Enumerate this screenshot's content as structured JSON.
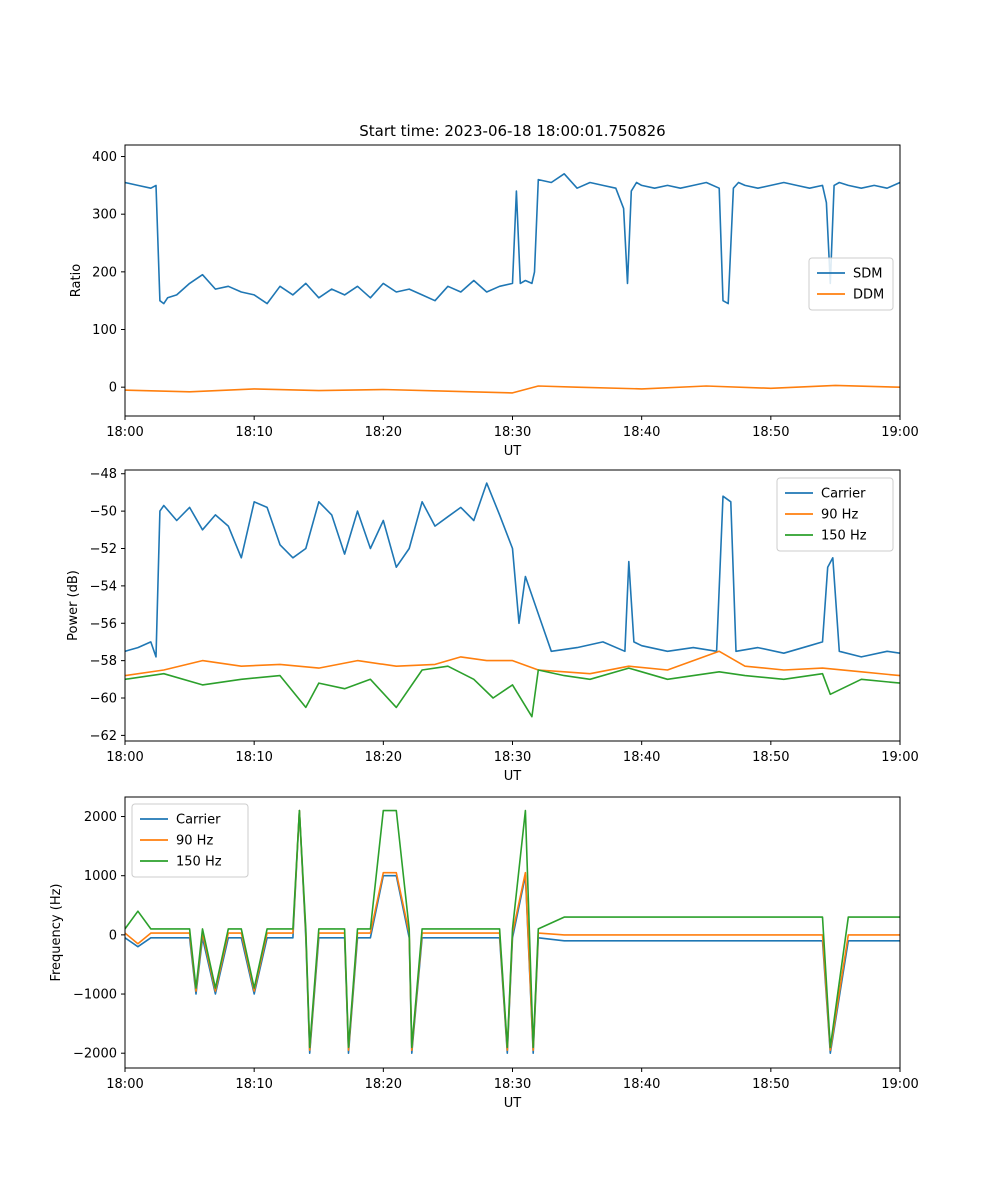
{
  "chart_data": [
    {
      "type": "line",
      "title": "Start time: 2023-06-18 18:00:01.750826",
      "xlabel": "UT",
      "ylabel": "Ratio",
      "x_ticks": [
        "18:00",
        "18:10",
        "18:20",
        "18:30",
        "18:40",
        "18:50",
        "19:00"
      ],
      "x_range_minutes": [
        0,
        60
      ],
      "ylim": [
        -50,
        420
      ],
      "y_ticks": [
        0,
        100,
        200,
        300,
        400
      ],
      "legend": {
        "position": "center-right"
      },
      "grid": false,
      "series": [
        {
          "name": "SDM",
          "color": "#1f77b4",
          "x": [
            0,
            1,
            2,
            2.4,
            2.7,
            3,
            3.3,
            4,
            5,
            6,
            7,
            8,
            9,
            10,
            11,
            12,
            13,
            14,
            15,
            16,
            17,
            18,
            19,
            20,
            21,
            22,
            23,
            24,
            25,
            26,
            27,
            28,
            29,
            30,
            30.3,
            30.6,
            31,
            31.5,
            31.7,
            32,
            33,
            34,
            35,
            36,
            37,
            38,
            38.6,
            38.9,
            39.2,
            39.6,
            40,
            41,
            42,
            43,
            44,
            45,
            46,
            46.3,
            46.7,
            47.1,
            47.5,
            48,
            49,
            50,
            51,
            52,
            53,
            54,
            54.3,
            54.6,
            54.9,
            55.3,
            56,
            57,
            58,
            59,
            60
          ],
          "y": [
            355,
            350,
            345,
            350,
            150,
            145,
            155,
            160,
            180,
            195,
            170,
            175,
            165,
            160,
            145,
            175,
            160,
            180,
            155,
            170,
            160,
            175,
            155,
            180,
            165,
            170,
            160,
            150,
            175,
            165,
            185,
            165,
            175,
            180,
            340,
            180,
            185,
            180,
            200,
            360,
            355,
            370,
            345,
            355,
            350,
            345,
            310,
            180,
            340,
            355,
            350,
            345,
            350,
            345,
            350,
            355,
            345,
            150,
            145,
            345,
            355,
            350,
            345,
            350,
            355,
            350,
            345,
            350,
            320,
            180,
            350,
            355,
            350,
            345,
            350,
            345,
            355
          ]
        },
        {
          "name": "DDM",
          "color": "#ff7f0e",
          "x": [
            0,
            5,
            10,
            15,
            20,
            25,
            30,
            32,
            35,
            40,
            45,
            50,
            55,
            60
          ],
          "y": [
            -5,
            -8,
            -3,
            -6,
            -4,
            -7,
            -10,
            2,
            0,
            -3,
            2,
            -2,
            3,
            0
          ]
        }
      ]
    },
    {
      "type": "line",
      "title": "",
      "xlabel": "UT",
      "ylabel": "Power (dB)",
      "x_ticks": [
        "18:00",
        "18:10",
        "18:20",
        "18:30",
        "18:40",
        "18:50",
        "19:00"
      ],
      "x_range_minutes": [
        0,
        60
      ],
      "ylim": [
        -62.3,
        -47.8
      ],
      "y_ticks": [
        -62,
        -60,
        -58,
        -56,
        -54,
        -52,
        -50,
        -48
      ],
      "legend": {
        "position": "top-right"
      },
      "grid": false,
      "series": [
        {
          "name": "Carrier",
          "color": "#1f77b4",
          "x": [
            0,
            1,
            2,
            2.4,
            2.7,
            3,
            4,
            5,
            6,
            7,
            8,
            9,
            10,
            11,
            12,
            13,
            14,
            15,
            16,
            17,
            18,
            19,
            20,
            21,
            22,
            23,
            24,
            25,
            26,
            27,
            28,
            29,
            30,
            30.5,
            31,
            32,
            33,
            35,
            37,
            38.7,
            39,
            39.4,
            40,
            42,
            44,
            45.8,
            46.3,
            46.9,
            47.3,
            49,
            51,
            53,
            54,
            54.4,
            54.8,
            55.3,
            57,
            59,
            60
          ],
          "y": [
            -57.5,
            -57.3,
            -57.0,
            -57.8,
            -50.0,
            -49.7,
            -50.5,
            -49.8,
            -51.0,
            -50.2,
            -50.8,
            -52.5,
            -49.5,
            -49.8,
            -51.8,
            -52.5,
            -52.0,
            -49.5,
            -50.2,
            -52.3,
            -50.0,
            -52.0,
            -50.5,
            -53.0,
            -52.0,
            -49.5,
            -50.8,
            -50.3,
            -49.8,
            -50.5,
            -48.5,
            -50.2,
            -52.0,
            -56.0,
            -53.5,
            -55.5,
            -57.5,
            -57.3,
            -57.0,
            -57.5,
            -52.7,
            -57.0,
            -57.2,
            -57.5,
            -57.3,
            -57.5,
            -49.2,
            -49.5,
            -57.5,
            -57.3,
            -57.6,
            -57.2,
            -57.0,
            -53.0,
            -52.5,
            -57.5,
            -57.8,
            -57.5,
            -57.6
          ]
        },
        {
          "name": "90 Hz",
          "color": "#ff7f0e",
          "x": [
            0,
            3,
            6,
            9,
            12,
            15,
            18,
            21,
            24,
            26,
            28,
            30,
            32,
            34,
            36,
            39,
            42,
            46,
            48,
            51,
            54,
            57,
            60
          ],
          "y": [
            -58.8,
            -58.5,
            -58.0,
            -58.3,
            -58.2,
            -58.4,
            -58.0,
            -58.3,
            -58.2,
            -57.8,
            -58.0,
            -58.0,
            -58.5,
            -58.6,
            -58.7,
            -58.3,
            -58.5,
            -57.5,
            -58.3,
            -58.5,
            -58.4,
            -58.6,
            -58.8
          ]
        },
        {
          "name": "150 Hz",
          "color": "#2ca02c",
          "x": [
            0,
            3,
            6,
            9,
            12,
            14,
            15,
            17,
            19,
            21,
            23,
            25,
            27,
            28.5,
            30,
            31.5,
            32,
            34,
            36,
            39,
            42,
            46,
            48,
            51,
            54,
            54.6,
            57,
            60
          ],
          "y": [
            -59.0,
            -58.7,
            -59.3,
            -59.0,
            -58.8,
            -60.5,
            -59.2,
            -59.5,
            -59.0,
            -60.5,
            -58.5,
            -58.3,
            -59.0,
            -60.0,
            -59.3,
            -61.0,
            -58.5,
            -58.8,
            -59.0,
            -58.4,
            -59.0,
            -58.6,
            -58.8,
            -59.0,
            -58.7,
            -59.8,
            -59.0,
            -59.2
          ]
        }
      ]
    },
    {
      "type": "line",
      "title": "",
      "xlabel": "UT",
      "ylabel": "Frequency (Hz)",
      "x_ticks": [
        "18:00",
        "18:10",
        "18:20",
        "18:30",
        "18:40",
        "18:50",
        "19:00"
      ],
      "x_range_minutes": [
        0,
        60
      ],
      "ylim": [
        -2250,
        2330
      ],
      "y_ticks": [
        -2000,
        -1000,
        0,
        1000,
        2000
      ],
      "legend": {
        "position": "top-left"
      },
      "grid": false,
      "series": [
        {
          "name": "Carrier",
          "color": "#1f77b4",
          "x": [
            0,
            1,
            2,
            3,
            4,
            5,
            5.5,
            6,
            7,
            8,
            9,
            10,
            11,
            12,
            13,
            13.5,
            14,
            14.3,
            15,
            16,
            17,
            17.3,
            18,
            19,
            20,
            21,
            22,
            22.2,
            23,
            24,
            25,
            26,
            27,
            28,
            29,
            29.6,
            30,
            31,
            31.6,
            32,
            34,
            36,
            38,
            40,
            42,
            44,
            46,
            48,
            50,
            52,
            54,
            54.6,
            56,
            58,
            60
          ],
          "y": [
            -50,
            -200,
            -50,
            -50,
            -50,
            -50,
            -1000,
            -50,
            -1000,
            -50,
            -50,
            -1000,
            -50,
            -50,
            -50,
            2100,
            -50,
            -2000,
            -50,
            -50,
            -50,
            -2000,
            -50,
            -50,
            1000,
            1000,
            -50,
            -2000,
            -50,
            -50,
            -50,
            -50,
            -50,
            -50,
            -50,
            -2000,
            -50,
            1000,
            -2000,
            -50,
            -100,
            -100,
            -100,
            -100,
            -100,
            -100,
            -100,
            -100,
            -100,
            -100,
            -100,
            -2000,
            -100,
            -100,
            -100
          ]
        },
        {
          "name": "90 Hz",
          "color": "#ff7f0e",
          "x": [
            0,
            1,
            2,
            3,
            4,
            5,
            5.5,
            6,
            7,
            8,
            9,
            10,
            11,
            12,
            13,
            13.5,
            14,
            14.3,
            15,
            16,
            17,
            17.3,
            18,
            19,
            20,
            21,
            22,
            22.2,
            23,
            24,
            25,
            26,
            27,
            28,
            29,
            29.6,
            30,
            31,
            31.6,
            32,
            34,
            36,
            38,
            40,
            42,
            44,
            46,
            48,
            50,
            52,
            54,
            54.6,
            56,
            58,
            60
          ],
          "y": [
            30,
            -150,
            30,
            30,
            30,
            30,
            -950,
            30,
            -950,
            30,
            30,
            -950,
            30,
            30,
            30,
            2100,
            30,
            -1950,
            30,
            30,
            30,
            -1950,
            30,
            30,
            1050,
            1050,
            30,
            -1950,
            30,
            30,
            30,
            30,
            30,
            30,
            30,
            -1950,
            30,
            1050,
            -1950,
            30,
            0,
            0,
            0,
            0,
            0,
            0,
            0,
            0,
            0,
            0,
            0,
            -1950,
            0,
            0,
            0
          ]
        },
        {
          "name": "150 Hz",
          "color": "#2ca02c",
          "x": [
            0,
            1,
            2,
            3,
            4,
            5,
            5.5,
            6,
            7,
            8,
            9,
            10,
            11,
            12,
            13,
            13.5,
            14,
            14.3,
            15,
            16,
            17,
            17.3,
            18,
            19,
            20,
            21,
            22,
            22.2,
            23,
            24,
            25,
            26,
            27,
            28,
            29,
            29.6,
            30,
            31,
            31.6,
            32,
            34,
            36,
            38,
            40,
            42,
            44,
            46,
            48,
            50,
            52,
            54,
            54.6,
            56,
            58,
            60
          ],
          "y": [
            100,
            400,
            100,
            100,
            100,
            100,
            -900,
            100,
            -900,
            100,
            100,
            -900,
            100,
            100,
            100,
            2100,
            100,
            -1900,
            100,
            100,
            100,
            -1900,
            100,
            100,
            2100,
            2100,
            100,
            -1900,
            100,
            100,
            100,
            100,
            100,
            100,
            100,
            -1900,
            100,
            2100,
            -1900,
            100,
            300,
            300,
            300,
            300,
            300,
            300,
            300,
            300,
            300,
            300,
            300,
            -1900,
            300,
            300,
            300
          ]
        }
      ]
    }
  ]
}
